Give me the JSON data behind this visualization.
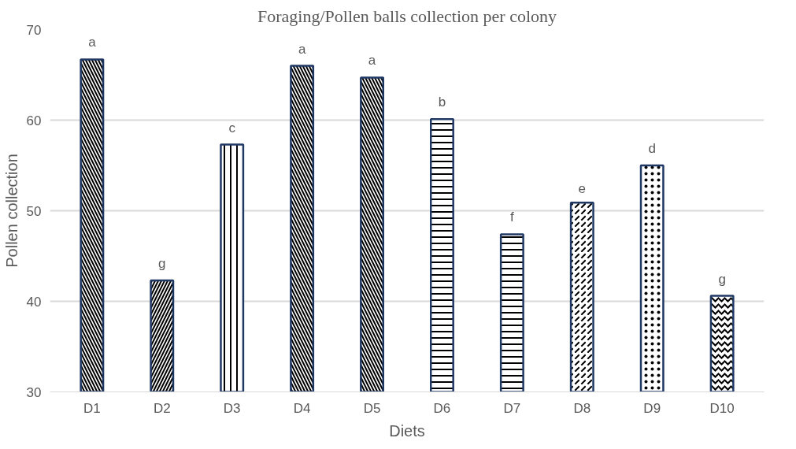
{
  "chart_data": {
    "type": "bar",
    "title": "Foraging/Pollen balls collection per colony",
    "xlabel": "Diets",
    "ylabel": "Pollen collection",
    "categories": [
      "D1",
      "D2",
      "D3",
      "D4",
      "D5",
      "D6",
      "D7",
      "D8",
      "D9",
      "D10"
    ],
    "values": [
      66.7,
      42.3,
      57.3,
      66.0,
      64.7,
      60.1,
      47.4,
      50.9,
      55.0,
      40.6
    ],
    "color": "#ffffff",
    "ylim": [
      30,
      70
    ],
    "yticks": [
      30,
      40,
      50,
      60,
      70
    ],
    "grid": "y",
    "annotations": [
      {
        "text": "a",
        "x": "D1",
        "y": 66.7
      },
      {
        "text": "g",
        "x": "D2",
        "y": 42.3
      },
      {
        "text": "c",
        "x": "D3",
        "y": 57.3
      },
      {
        "text": "a",
        "x": "D4",
        "y": 66.0
      },
      {
        "text": "a",
        "x": "D5",
        "y": 64.7
      },
      {
        "text": "b",
        "x": "D6",
        "y": 60.1
      },
      {
        "text": "f",
        "x": "D7",
        "y": 47.4
      },
      {
        "text": "e",
        "x": "D8",
        "y": 50.9
      },
      {
        "text": "d",
        "x": "D9",
        "y": 55.0
      },
      {
        "text": "g",
        "x": "D10",
        "y": 40.6
      }
    ]
  }
}
